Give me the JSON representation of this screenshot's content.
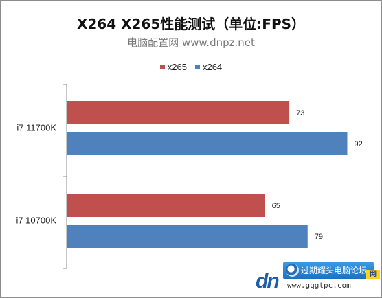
{
  "chart_data": {
    "type": "bar",
    "orientation": "horizontal",
    "title": "X264 X265性能测试（单位:FPS）",
    "subtitle": "电脑配置网 www.dnpz.net",
    "categories": [
      "i7 11700K",
      "i7 10700K"
    ],
    "series": [
      {
        "name": "x265",
        "values": [
          73,
          65
        ],
        "color": "#c0504d"
      },
      {
        "name": "x264",
        "values": [
          92,
          79
        ],
        "color": "#4f81bd"
      }
    ],
    "legend": {
      "placement": "top-center",
      "order": [
        "x265",
        "x264"
      ]
    },
    "xlim": [
      0,
      100
    ],
    "grid": false,
    "data_labels": true
  },
  "watermark": {
    "site_name": "过期耀头电脑论坛",
    "url": "www.gqgtpc.com",
    "logo_text": "dn",
    "badge_text": "网"
  }
}
